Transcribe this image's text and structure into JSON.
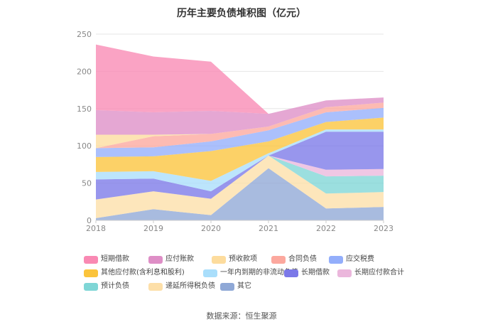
{
  "chart_data": {
    "type": "area",
    "stacked": true,
    "title": "历年主要负债堆积图（亿元）",
    "x": [
      "2018",
      "2019",
      "2020",
      "2021",
      "2022",
      "2023"
    ],
    "ylim": [
      0,
      250
    ],
    "yticks": [
      0,
      50,
      100,
      150,
      200,
      250
    ],
    "grid": true,
    "legend_position": "bottom",
    "series": [
      {
        "name": "其它",
        "color": "#8fa8d6",
        "values": [
          3,
          15,
          7,
          70,
          16,
          18
        ]
      },
      {
        "name": "递延所得税负债",
        "color": "#fddfa8",
        "values": [
          25,
          24,
          22,
          17,
          20,
          20
        ]
      },
      {
        "name": "预计负债",
        "color": "#7fd6d6",
        "values": [
          0,
          0,
          0,
          0,
          23,
          22
        ]
      },
      {
        "name": "长期应付款合计",
        "color": "#ebb7dc",
        "values": [
          0,
          0,
          0,
          0,
          9,
          9
        ]
      },
      {
        "name": "长期借款",
        "color": "#7b78e8",
        "values": [
          27,
          17,
          10,
          0,
          51,
          50
        ]
      },
      {
        "name": "一年内到期的非流动负债",
        "color": "#a9defb",
        "values": [
          10,
          10,
          14,
          3,
          3,
          3
        ]
      },
      {
        "name": "其他应付款(含利息和股利)",
        "color": "#fbc43c",
        "values": [
          20,
          20,
          40,
          16,
          10,
          16
        ]
      },
      {
        "name": "应交税费",
        "color": "#93aefb",
        "values": [
          12,
          12,
          13,
          15,
          13,
          13
        ]
      },
      {
        "name": "合同负债",
        "color": "#fca89e",
        "values": [
          0,
          15,
          10,
          5,
          7,
          7
        ]
      },
      {
        "name": "预收款项",
        "color": "#fddc9d",
        "values": [
          18,
          2,
          0,
          0,
          0,
          0
        ]
      },
      {
        "name": "应付账款",
        "color": "#de8ec6",
        "values": [
          33,
          30,
          31,
          17,
          9,
          7
        ]
      },
      {
        "name": "短期借款",
        "color": "#f989b3",
        "values": [
          88,
          75,
          66,
          0,
          0,
          0
        ]
      }
    ],
    "legend_order": [
      "短期借款",
      "应付账款",
      "预收款项",
      "合同负债",
      "应交税费",
      "其他应付款(含利息和股利)",
      "一年内到期的非流动负债",
      "长期借款",
      "长期应付款合计",
      "预计负债",
      "递延所得税负债",
      "其它"
    ]
  },
  "source_text": "数据来源：恒生聚源"
}
